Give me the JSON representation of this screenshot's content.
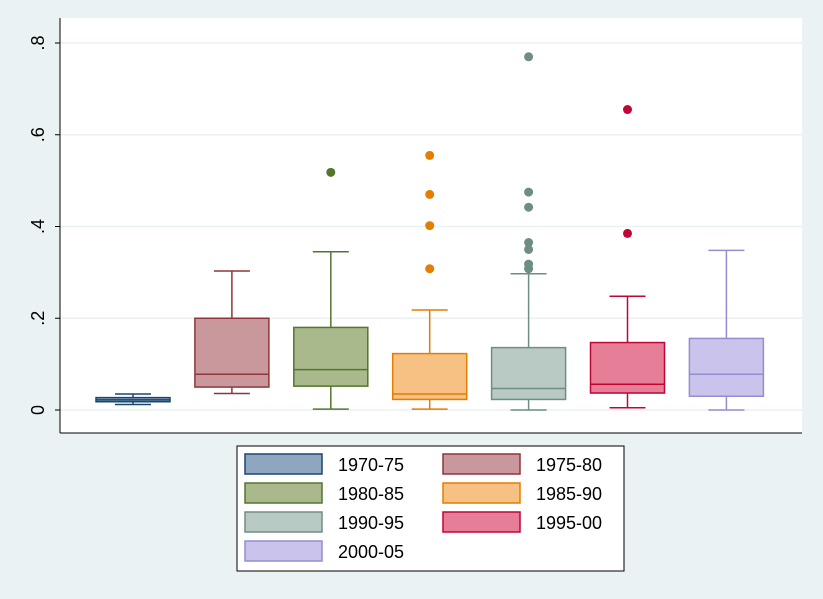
{
  "chart_data": {
    "type": "box",
    "title": "",
    "xlabel": "",
    "ylabel": "",
    "ylim": [
      -0.05,
      0.85
    ],
    "yticks": [
      0,
      0.2,
      0.4,
      0.6,
      0.8
    ],
    "ytick_labels": [
      "0",
      ".2",
      ".4",
      ".6",
      ".8"
    ],
    "grid": true,
    "legend_position": "bottom",
    "series": [
      {
        "name": "1970-75",
        "fill": "#8fa6c0",
        "stroke": "#1a476f",
        "whisker_low": 0.012,
        "q1": 0.018,
        "median": 0.022,
        "q3": 0.027,
        "whisker_high": 0.035,
        "outliers": []
      },
      {
        "name": "1975-80",
        "fill": "#c8989c",
        "stroke": "#90353b",
        "whisker_low": 0.036,
        "q1": 0.05,
        "median": 0.078,
        "q3": 0.2,
        "whisker_high": 0.303,
        "outliers": []
      },
      {
        "name": "1980-85",
        "fill": "#a9b98c",
        "stroke": "#55752f",
        "whisker_low": 0.002,
        "q1": 0.052,
        "median": 0.088,
        "q3": 0.18,
        "whisker_high": 0.345,
        "outliers": [
          0.518
        ]
      },
      {
        "name": "1985-90",
        "fill": "#f6c183",
        "stroke": "#e37e00",
        "whisker_low": 0.002,
        "q1": 0.023,
        "median": 0.035,
        "q3": 0.123,
        "whisker_high": 0.218,
        "outliers": [
          0.308,
          0.402,
          0.47,
          0.555
        ]
      },
      {
        "name": "1990-95",
        "fill": "#b9c9c3",
        "stroke": "#6e8e84",
        "whisker_low": 0.0,
        "q1": 0.023,
        "median": 0.047,
        "q3": 0.136,
        "whisker_high": 0.297,
        "outliers": [
          0.308,
          0.318,
          0.35,
          0.365,
          0.442,
          0.475,
          0.77
        ]
      },
      {
        "name": "1995-00",
        "fill": "#e67e98",
        "stroke": "#c10534",
        "whisker_low": 0.005,
        "q1": 0.037,
        "median": 0.056,
        "q3": 0.147,
        "whisker_high": 0.248,
        "outliers": [
          0.385,
          0.655
        ]
      },
      {
        "name": "2000-05",
        "fill": "#cac4ec",
        "stroke": "#938dd2",
        "whisker_low": 0.0,
        "q1": 0.03,
        "median": 0.078,
        "q3": 0.156,
        "whisker_high": 0.348,
        "outliers": []
      }
    ]
  }
}
